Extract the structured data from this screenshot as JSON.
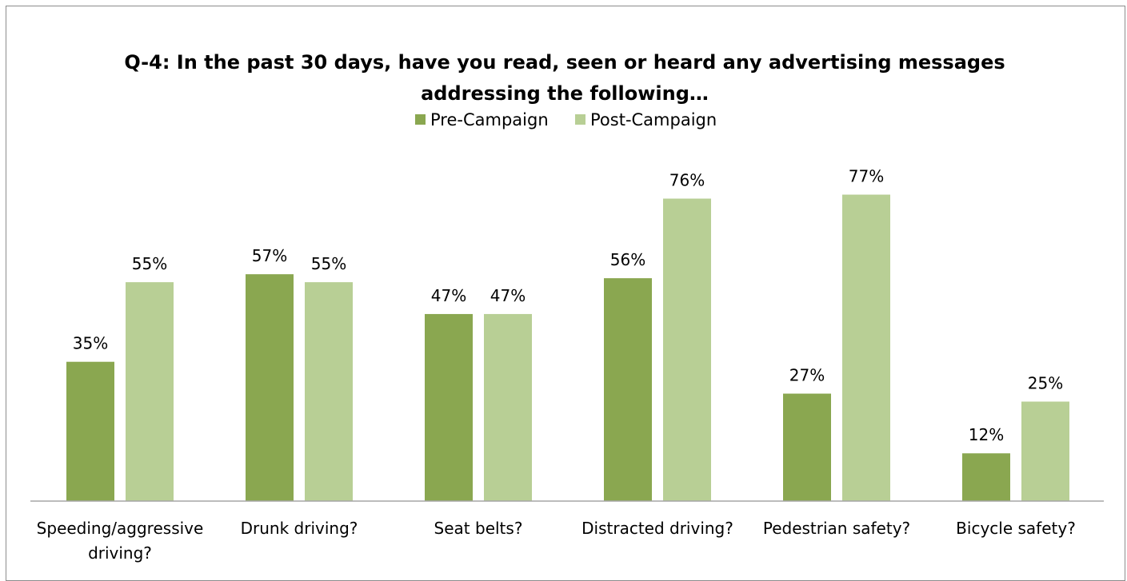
{
  "chart_data": {
    "type": "bar",
    "title": "Q-4: In the past 30 days, have you read, seen or heard any advertising messages addressing the following…",
    "title_lines": [
      "Q-4: In the past 30 days, have you read, seen or heard any advertising messages",
      "addressing the following…"
    ],
    "categories": [
      "Speeding/aggressive driving?",
      "Drunk driving?",
      "Seat belts?",
      "Distracted driving?",
      "Pedestrian safety?",
      "Bicycle safety?"
    ],
    "category_lines": [
      [
        "Speeding/aggressive",
        "driving?"
      ],
      [
        "Drunk driving?"
      ],
      [
        "Seat belts?"
      ],
      [
        "Distracted driving?"
      ],
      [
        "Pedestrian safety?"
      ],
      [
        "Bicycle safety?"
      ]
    ],
    "series": [
      {
        "name": "Pre-Campaign",
        "values": [
          35,
          57,
          47,
          56,
          27,
          12
        ],
        "labels": [
          "35%",
          "57%",
          "47%",
          "56%",
          "27%",
          "12%"
        ],
        "color": "#8aa750"
      },
      {
        "name": "Post-Campaign",
        "values": [
          55,
          55,
          47,
          76,
          77,
          25
        ],
        "labels": [
          "55%",
          "55%",
          "47%",
          "76%",
          "77%",
          "25%"
        ],
        "color": "#b8cf95"
      }
    ],
    "xlabel": "",
    "ylabel": "",
    "ylim": [
      0,
      100
    ],
    "grid": false,
    "legend_position": "top-center",
    "data_labels": true,
    "value_suffix": "%"
  }
}
